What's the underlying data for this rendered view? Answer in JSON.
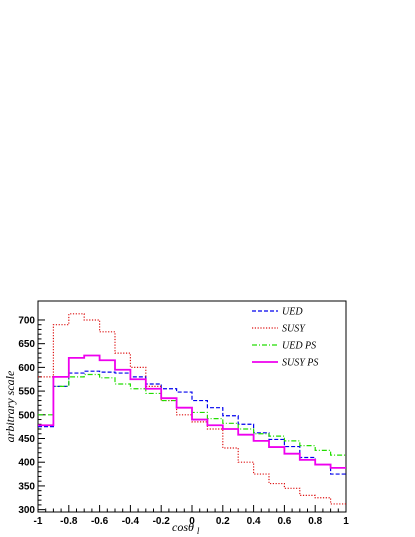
{
  "chart_data": {
    "type": "line",
    "style": "step-histogram",
    "xlabel": "cosθ",
    "xlabel_main": "cosθ",
    "xlabel_sub": "l",
    "ylabel": "arbitrary scale",
    "xlim": [
      -1,
      1
    ],
    "ylim": [
      295,
      740
    ],
    "x_ticks": [
      -1,
      -0.8,
      -0.6,
      -0.4,
      -0.2,
      0,
      0.2,
      0.4,
      0.6,
      0.8,
      1
    ],
    "x_tick_labels": [
      "-1",
      "-0.8",
      "-0.6",
      "-0.4",
      "-0.2",
      "0",
      "0.2",
      "0.4",
      "0.6",
      "0.8",
      "1"
    ],
    "y_ticks": [
      300,
      350,
      400,
      450,
      500,
      550,
      600,
      650,
      700
    ],
    "y_tick_labels": [
      "300",
      "350",
      "400",
      "450",
      "500",
      "550",
      "600",
      "650",
      "700"
    ],
    "bin_edges": [
      -1,
      -0.9,
      -0.8,
      -0.7,
      -0.6,
      -0.5,
      -0.4,
      -0.3,
      -0.2,
      -0.1,
      0,
      0.1,
      0.2,
      0.3,
      0.4,
      0.5,
      0.6,
      0.7,
      0.8,
      0.9,
      1
    ],
    "legend_position": "top-right",
    "series": [
      {
        "name": "UED",
        "color": "#0000ee",
        "dash": "4,2",
        "width": 1.2,
        "values": [
          475,
          560,
          588,
          592,
          590,
          588,
          580,
          565,
          555,
          548,
          530,
          515,
          498,
          480,
          462,
          448,
          433,
          410,
          395,
          375
        ]
      },
      {
        "name": "SUSY",
        "color": "#dd1111",
        "dash": "1.2,1.6",
        "width": 1.2,
        "values": [
          580,
          690,
          713,
          700,
          675,
          630,
          600,
          560,
          530,
          500,
          485,
          470,
          430,
          400,
          375,
          355,
          345,
          330,
          325,
          312
        ]
      },
      {
        "name": "UED PS",
        "color": "#22dd00",
        "dash": "5,2,1,2",
        "width": 1.2,
        "values": [
          500,
          560,
          580,
          585,
          578,
          565,
          555,
          545,
          530,
          515,
          505,
          492,
          482,
          470,
          460,
          455,
          445,
          435,
          425,
          415
        ]
      },
      {
        "name": "SUSY PS",
        "color": "#ee00ee",
        "dash": "",
        "width": 1.8,
        "values": [
          478,
          580,
          620,
          625,
          615,
          595,
          575,
          555,
          535,
          515,
          490,
          478,
          470,
          458,
          445,
          432,
          418,
          405,
          395,
          388
        ]
      }
    ]
  }
}
